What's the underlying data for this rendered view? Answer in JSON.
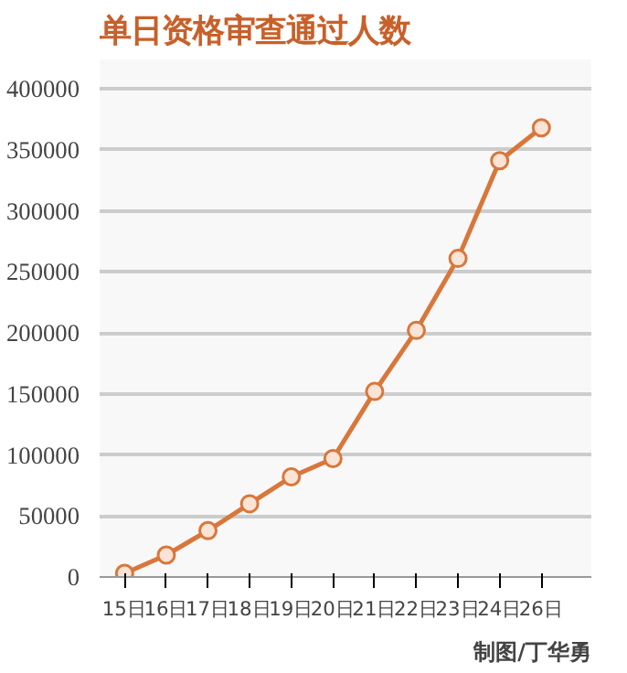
{
  "chart_data": {
    "type": "line",
    "title": "单日资格审查通过人数",
    "categories": [
      "15日",
      "16日",
      "17日",
      "18日",
      "19日",
      "20日",
      "21日",
      "22日",
      "23日",
      "24日",
      "26日"
    ],
    "series": [
      {
        "color": "#d9773a",
        "values": [
          3000,
          18000,
          38000,
          60000,
          82000,
          97000,
          152000,
          202000,
          261000,
          341000,
          368000
        ]
      }
    ],
    "ylim": [
      0,
      400000
    ],
    "yticks": [
      0,
      50000,
      100000,
      150000,
      200000,
      250000,
      300000,
      350000,
      400000
    ],
    "grid": "y",
    "marker": "circle",
    "line_style": "solid",
    "annotations": [
      "制图/丁华勇"
    ]
  }
}
